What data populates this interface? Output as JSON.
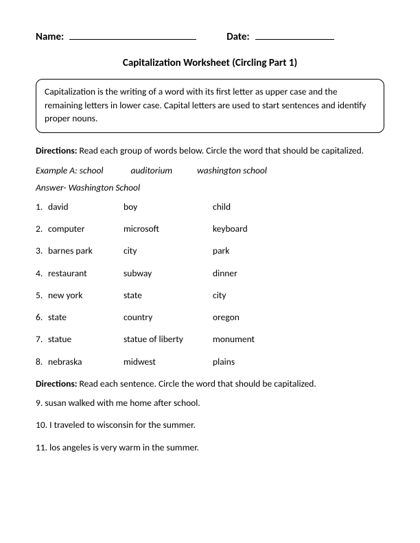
{
  "header": {
    "name_label": "Name:",
    "date_label": "Date:"
  },
  "title": "Capitalization Worksheet (Circling Part 1)",
  "info_box": "Capitalization is the writing of a word with its first letter as upper case and the remaining letters in lower case. Capital letters are used to start sentences and identify proper nouns.",
  "directions1_label": "Directions:",
  "directions1_text": " Read each group of words below. Circle the word that should be capitalized.",
  "example_label": "Example A: ",
  "example_words": [
    "school",
    "auditorium",
    "washington school"
  ],
  "answer_label": "Answer- ",
  "answer_text": "Washington School",
  "word_items": [
    {
      "n": "1.",
      "w": [
        "david",
        "boy",
        "child"
      ]
    },
    {
      "n": "2.",
      "w": [
        "computer",
        "microsoft",
        "keyboard"
      ]
    },
    {
      "n": "3.",
      "w": [
        "barnes park",
        "city",
        "park"
      ]
    },
    {
      "n": "4.",
      "w": [
        "restaurant",
        "subway",
        "dinner"
      ]
    },
    {
      "n": "5.",
      "w": [
        "new york",
        "state",
        "city"
      ]
    },
    {
      "n": "6.",
      "w": [
        "state",
        "country",
        "oregon"
      ]
    },
    {
      "n": "7.",
      "w": [
        "statue",
        "statue of liberty",
        "monument"
      ]
    },
    {
      "n": "8.",
      "w": [
        "nebraska",
        "midwest",
        "plains"
      ]
    }
  ],
  "directions2_label": "Directions:",
  "directions2_text": " Read each sentence. Circle the word that should be capitalized.",
  "sentence_items": [
    {
      "n": "9.",
      "t": "susan walked with me home after school."
    },
    {
      "n": "10.",
      "t": "I traveled to wisconsin for the summer."
    },
    {
      "n": "11.",
      "t": "los angeles is very warm in the summer."
    }
  ]
}
